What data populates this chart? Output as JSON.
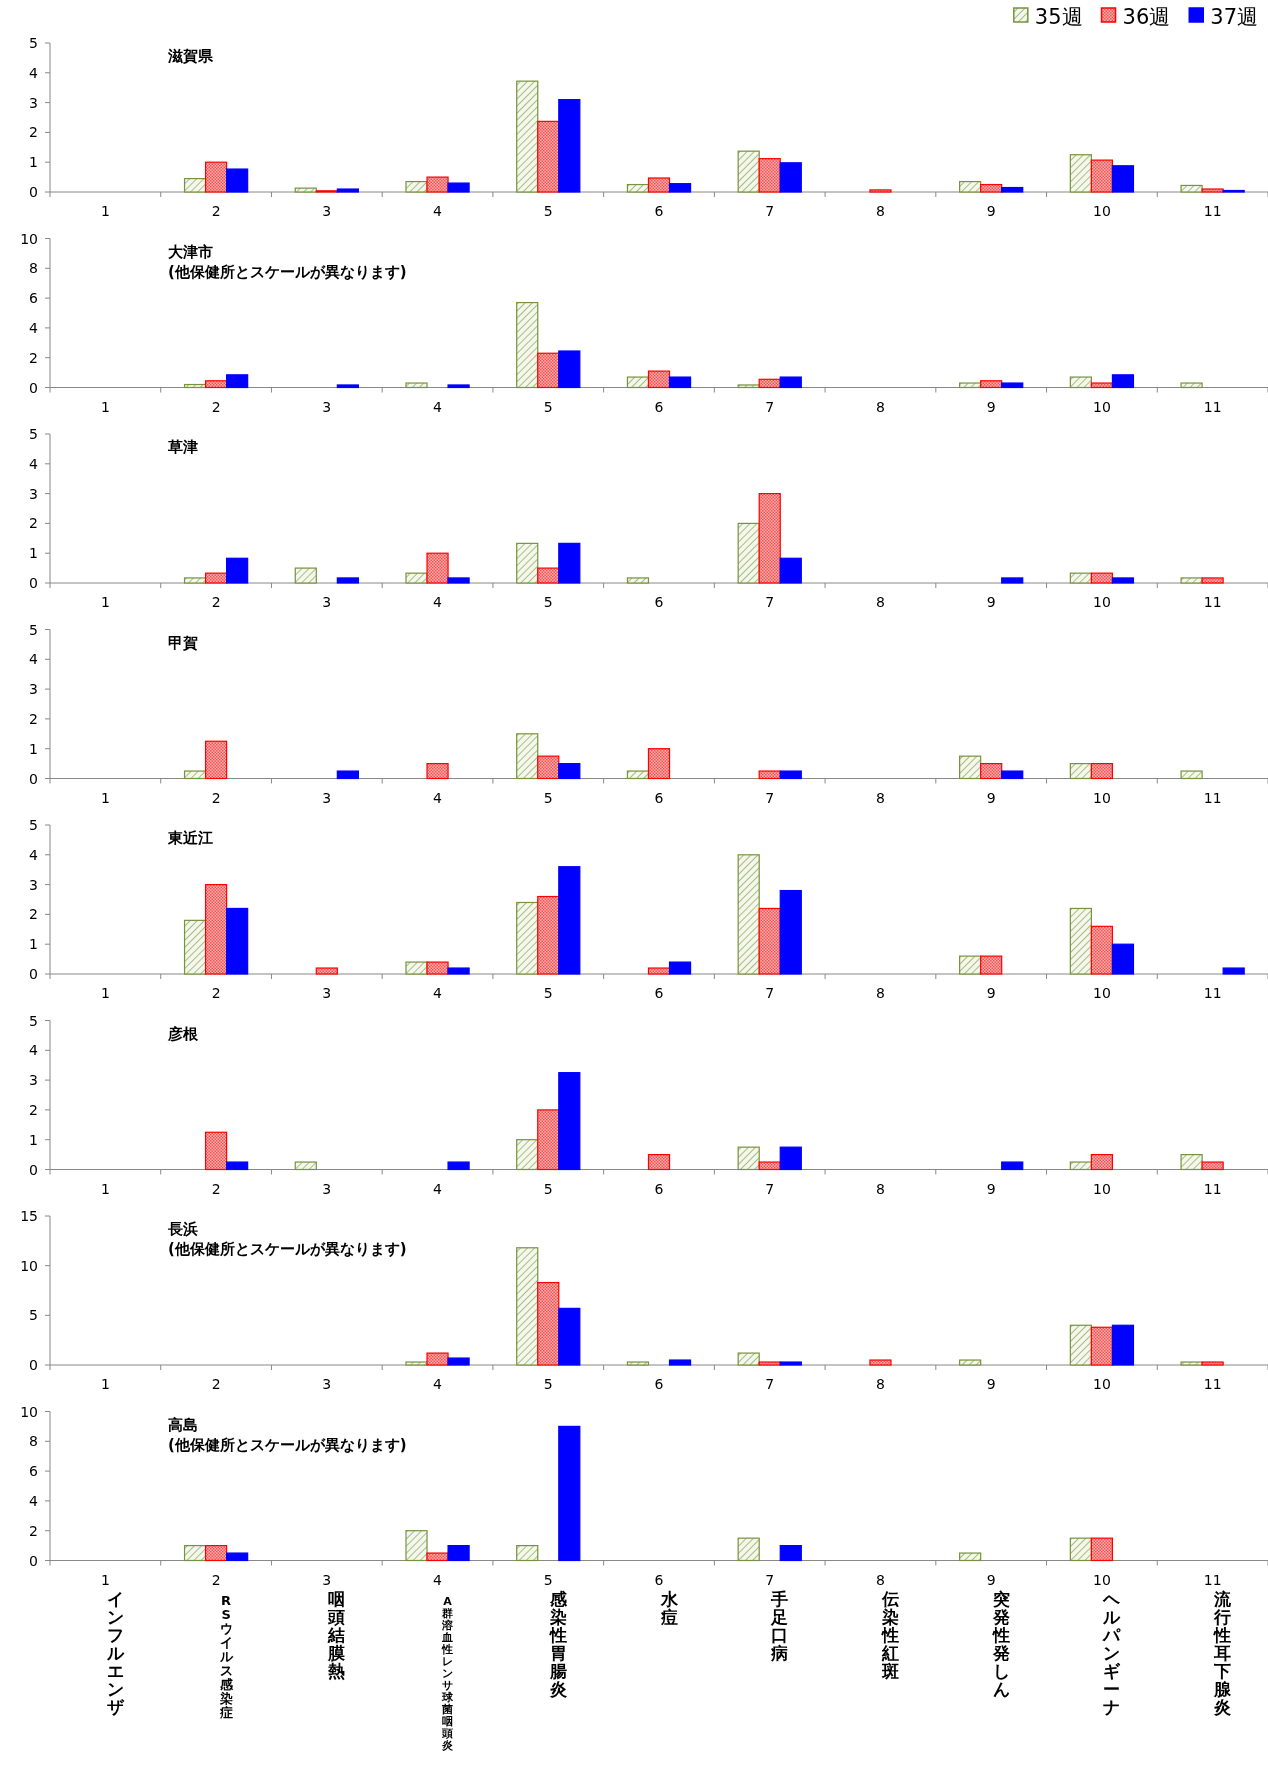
{
  "chart_data": [
    {
      "type": "bar",
      "title": "滋賀県",
      "categories": [
        "1",
        "2",
        "3",
        "4",
        "5",
        "6",
        "7",
        "8",
        "9",
        "10",
        "11"
      ],
      "ylim": [
        0,
        5
      ],
      "yticks": [
        0,
        1,
        2,
        3,
        4,
        5
      ],
      "legend": "top right",
      "series": [
        {
          "name": "35週",
          "color": "#77933c",
          "values": [
            0,
            0.45,
            0.13,
            0.35,
            3.72,
            0.25,
            1.37,
            0,
            0.35,
            1.25,
            0.22
          ]
        },
        {
          "name": "36週",
          "color": "#ff0000",
          "values": [
            0,
            1.0,
            0.04,
            0.5,
            2.37,
            0.47,
            1.12,
            0.07,
            0.25,
            1.07,
            0.1
          ]
        },
        {
          "name": "37週",
          "color": "#0000ff",
          "values": [
            0,
            0.77,
            0.1,
            0.3,
            3.1,
            0.28,
            0.98,
            0,
            0.15,
            0.88,
            0.05
          ]
        }
      ]
    },
    {
      "type": "bar",
      "title": "大津市",
      "subtitle": "(他保健所とスケールが異なります)",
      "categories": [
        "1",
        "2",
        "3",
        "4",
        "5",
        "6",
        "7",
        "8",
        "9",
        "10",
        "11"
      ],
      "ylim": [
        0,
        10
      ],
      "yticks": [
        0,
        2,
        4,
        6,
        8,
        10
      ],
      "series": [
        {
          "color": "#77933c",
          "values": [
            0,
            0.2,
            0,
            0.3,
            5.7,
            0.7,
            0.17,
            0,
            0.3,
            0.7,
            0.3
          ]
        },
        {
          "color": "#ff0000",
          "values": [
            0,
            0.45,
            0,
            0,
            2.3,
            1.1,
            0.55,
            0,
            0.45,
            0.3,
            0
          ]
        },
        {
          "color": "#0000ff",
          "values": [
            0,
            0.85,
            0.17,
            0.17,
            2.45,
            0.7,
            0.7,
            0,
            0.3,
            0.85,
            0
          ]
        }
      ]
    },
    {
      "type": "bar",
      "title": "草津",
      "categories": [
        "1",
        "2",
        "3",
        "4",
        "5",
        "6",
        "7",
        "8",
        "9",
        "10",
        "11"
      ],
      "ylim": [
        0,
        5
      ],
      "yticks": [
        0,
        1,
        2,
        3,
        4,
        5
      ],
      "series": [
        {
          "color": "#77933c",
          "values": [
            0,
            0.17,
            0.5,
            0.33,
            1.33,
            0.17,
            2.0,
            0,
            0,
            0.33,
            0.17
          ]
        },
        {
          "color": "#ff0000",
          "values": [
            0,
            0.33,
            0,
            1.0,
            0.5,
            0,
            3.0,
            0,
            0,
            0.33,
            0.17
          ]
        },
        {
          "color": "#0000ff",
          "values": [
            0,
            0.83,
            0.17,
            0.17,
            1.33,
            0,
            0.83,
            0,
            0.17,
            0.17,
            0
          ]
        }
      ]
    },
    {
      "type": "bar",
      "title": "甲賀",
      "categories": [
        "1",
        "2",
        "3",
        "4",
        "5",
        "6",
        "7",
        "8",
        "9",
        "10",
        "11"
      ],
      "ylim": [
        0,
        5
      ],
      "yticks": [
        0,
        1,
        2,
        3,
        4,
        5
      ],
      "series": [
        {
          "color": "#77933c",
          "values": [
            0,
            0.25,
            0,
            0,
            1.5,
            0.25,
            0,
            0,
            0.75,
            0.5,
            0.25
          ]
        },
        {
          "color": "#ff0000",
          "values": [
            0,
            1.25,
            0,
            0.5,
            0.75,
            1.0,
            0.25,
            0,
            0.5,
            0.5,
            0
          ]
        },
        {
          "color": "#0000ff",
          "values": [
            0,
            0,
            0.25,
            0,
            0.5,
            0,
            0.25,
            0,
            0.25,
            0,
            0
          ]
        }
      ]
    },
    {
      "type": "bar",
      "title": "東近江",
      "categories": [
        "1",
        "2",
        "3",
        "4",
        "5",
        "6",
        "7",
        "8",
        "9",
        "10",
        "11"
      ],
      "ylim": [
        0,
        5
      ],
      "yticks": [
        0,
        1,
        2,
        3,
        4,
        5
      ],
      "series": [
        {
          "color": "#77933c",
          "values": [
            0,
            1.8,
            0,
            0.4,
            2.4,
            0,
            4.0,
            0,
            0.6,
            2.2,
            0
          ]
        },
        {
          "color": "#ff0000",
          "values": [
            0,
            3.0,
            0.2,
            0.4,
            2.6,
            0.2,
            2.2,
            0,
            0.6,
            1.6,
            0
          ]
        },
        {
          "color": "#0000ff",
          "values": [
            0,
            2.2,
            0,
            0.2,
            3.6,
            0.4,
            2.8,
            0,
            0,
            1.0,
            0.2
          ]
        }
      ]
    },
    {
      "type": "bar",
      "title": "彦根",
      "categories": [
        "1",
        "2",
        "3",
        "4",
        "5",
        "6",
        "7",
        "8",
        "9",
        "10",
        "11"
      ],
      "ylim": [
        0,
        5
      ],
      "yticks": [
        0,
        1,
        2,
        3,
        4,
        5
      ],
      "series": [
        {
          "color": "#77933c",
          "values": [
            0,
            0,
            0.25,
            0,
            1.0,
            0,
            0.75,
            0,
            0,
            0.25,
            0.5
          ]
        },
        {
          "color": "#ff0000",
          "values": [
            0,
            1.25,
            0,
            0,
            2.0,
            0.5,
            0.25,
            0,
            0,
            0.5,
            0.25
          ]
        },
        {
          "color": "#0000ff",
          "values": [
            0,
            0.25,
            0,
            0.25,
            3.25,
            0,
            0.75,
            0,
            0.25,
            0,
            0
          ]
        }
      ]
    },
    {
      "type": "bar",
      "title": "長浜",
      "subtitle": "(他保健所とスケールが異なります)",
      "categories": [
        "1",
        "2",
        "3",
        "4",
        "5",
        "6",
        "7",
        "8",
        "9",
        "10",
        "11"
      ],
      "ylim": [
        0,
        15
      ],
      "yticks": [
        0,
        5,
        10,
        15
      ],
      "series": [
        {
          "color": "#77933c",
          "values": [
            0,
            0,
            0,
            0.3,
            11.8,
            0.3,
            1.2,
            0,
            0.5,
            4.0,
            0.3
          ]
        },
        {
          "color": "#ff0000",
          "values": [
            0,
            0,
            0,
            1.2,
            8.3,
            0,
            0.3,
            0.5,
            0,
            3.8,
            0.3
          ]
        },
        {
          "color": "#0000ff",
          "values": [
            0,
            0,
            0,
            0.7,
            5.7,
            0.5,
            0.3,
            0,
            0,
            4.0,
            0
          ]
        }
      ]
    },
    {
      "type": "bar",
      "title": "高島",
      "subtitle": "(他保健所とスケールが異なります)",
      "categories": [
        "1",
        "2",
        "3",
        "4",
        "5",
        "6",
        "7",
        "8",
        "9",
        "10",
        "11"
      ],
      "ylim": [
        0,
        10
      ],
      "yticks": [
        0,
        2,
        4,
        6,
        8,
        10
      ],
      "annotations": [
        "インフルエンザ",
        "RSウイルス感染症",
        "咽頭結膜熱",
        "A群溶血性レンサ球菌咽頭炎",
        "感染性胃腸炎",
        "水痘",
        "手足口病",
        "伝染性紅斑",
        "突発性発しん",
        "ヘルパンギーナ",
        "流行性耳下腺炎"
      ],
      "series": [
        {
          "color": "#77933c",
          "values": [
            0,
            1,
            0,
            2,
            1,
            0,
            1.5,
            0,
            0.5,
            1.5,
            0
          ]
        },
        {
          "color": "#ff0000",
          "values": [
            0,
            1,
            0,
            0.5,
            0,
            0,
            0,
            0,
            0,
            1.5,
            0
          ]
        },
        {
          "color": "#0000ff",
          "values": [
            0,
            0.5,
            0,
            1,
            9,
            0,
            1,
            0,
            0,
            0,
            0
          ]
        }
      ]
    }
  ]
}
